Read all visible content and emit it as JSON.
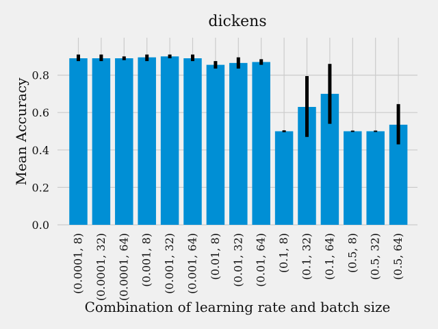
{
  "chart_data": {
    "type": "bar",
    "title": "dickens",
    "xlabel": "Combination of learning rate and batch size",
    "ylabel": "Mean Accuracy",
    "ylim": [
      0,
      1.0
    ],
    "yticks": [
      0.0,
      0.2,
      0.4,
      0.6,
      0.8
    ],
    "ytick_labels": [
      "0.0",
      "0.2",
      "0.4",
      "0.6",
      "0.8"
    ],
    "grid": true,
    "bar_color": "#008fd5",
    "error_color": "#000000",
    "categories": [
      "(0.0001, 8)",
      "(0.0001, 32)",
      "(0.0001, 64)",
      "(0.001, 8)",
      "(0.001, 32)",
      "(0.001, 64)",
      "(0.01, 8)",
      "(0.01, 32)",
      "(0.01, 64)",
      "(0.1, 8)",
      "(0.1, 32)",
      "(0.1, 64)",
      "(0.5, 8)",
      "(0.5, 32)",
      "(0.5, 64)"
    ],
    "values": [
      0.89,
      0.89,
      0.89,
      0.895,
      0.9,
      0.89,
      0.855,
      0.865,
      0.87,
      0.5,
      0.63,
      0.7,
      0.5,
      0.5,
      0.535
    ],
    "error_low": [
      0.875,
      0.875,
      0.88,
      0.875,
      0.89,
      0.875,
      0.835,
      0.835,
      0.855,
      0.495,
      0.47,
      0.54,
      0.5,
      0.5,
      0.43
    ],
    "error_high": [
      0.91,
      0.91,
      0.9,
      0.91,
      0.91,
      0.91,
      0.875,
      0.895,
      0.885,
      0.505,
      0.795,
      0.86,
      0.5,
      0.5,
      0.645
    ]
  }
}
